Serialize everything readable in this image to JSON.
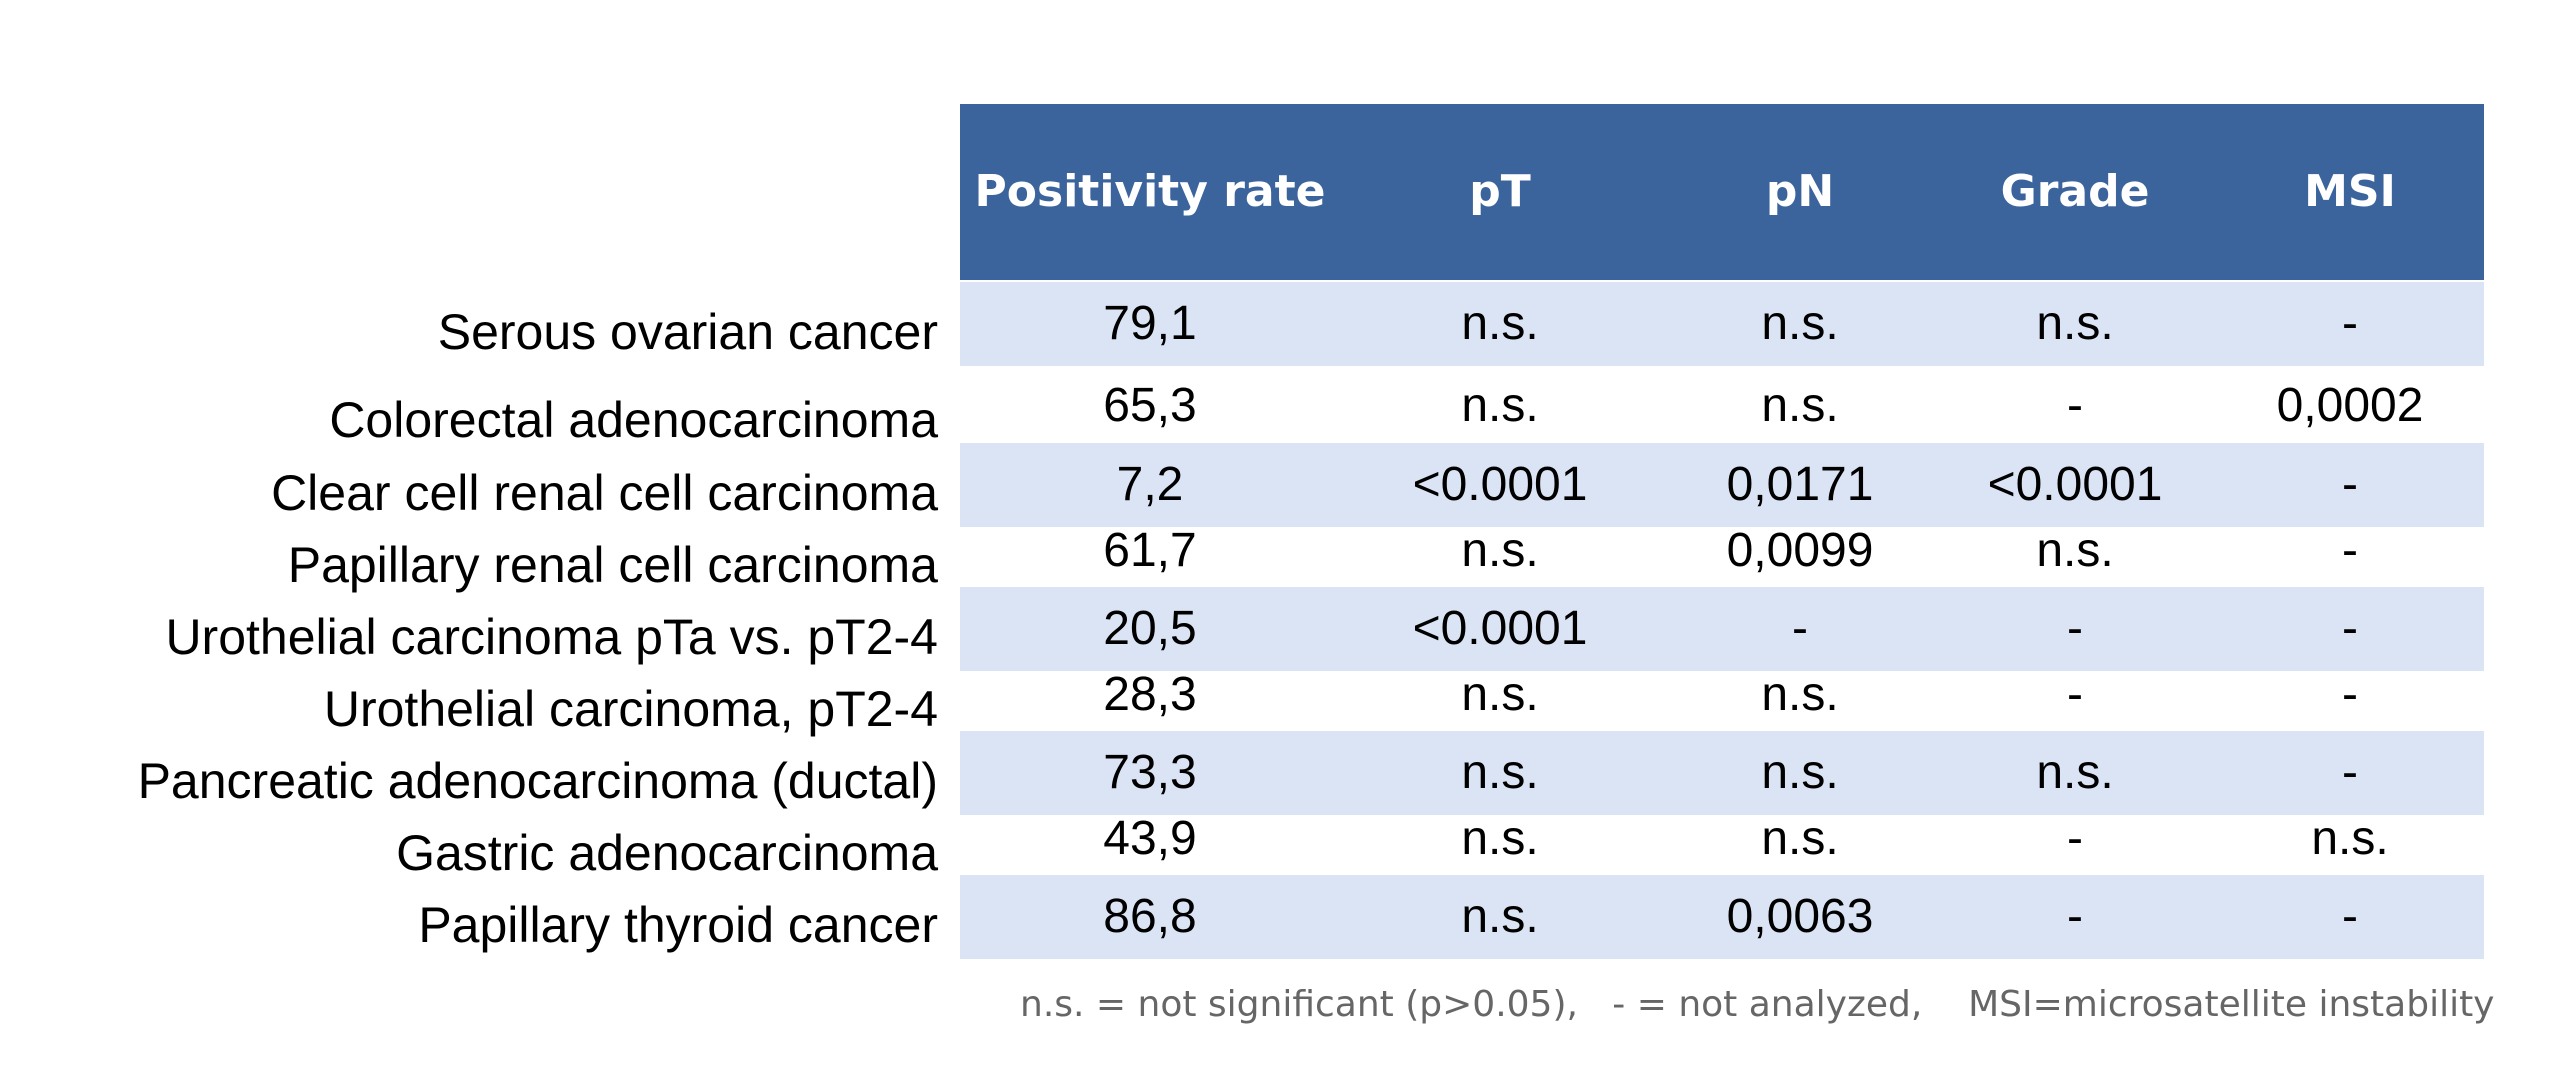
{
  "chart_data": {
    "type": "table",
    "columns": [
      "Positivity rate",
      "pT",
      "pN",
      "Grade",
      "MSI"
    ],
    "rows": [
      {
        "label": "Serous ovarian cancer",
        "values": [
          "79,1",
          "n.s.",
          "n.s.",
          "n.s.",
          "-"
        ]
      },
      {
        "label": "Colorectal adenocarcinoma",
        "values": [
          "65,3",
          "n.s.",
          "n.s.",
          "-",
          "0,0002"
        ]
      },
      {
        "label": "Clear cell renal cell carcinoma",
        "values": [
          "7,2",
          "<0.0001",
          "0,0171",
          "<0.0001",
          "-"
        ]
      },
      {
        "label": "Papillary renal cell carcinoma",
        "values": [
          "61,7",
          "n.s.",
          "0,0099",
          "n.s.",
          "-"
        ]
      },
      {
        "label": "Urothelial carcinoma pTa vs. pT2-4",
        "values": [
          "20,5",
          "<0.0001",
          "-",
          "-",
          "-"
        ]
      },
      {
        "label": "Urothelial carcinoma, pT2-4",
        "values": [
          "28,3",
          "n.s.",
          "n.s.",
          "-",
          "-"
        ]
      },
      {
        "label": "Pancreatic adenocarcinoma (ductal)",
        "values": [
          "73,3",
          "n.s.",
          "n.s.",
          "n.s.",
          "-"
        ]
      },
      {
        "label": "Gastric adenocarcinoma",
        "values": [
          "43,9",
          "n.s.",
          "n.s.",
          "-",
          "n.s."
        ]
      },
      {
        "label": "Papillary thyroid cancer",
        "values": [
          "86,8",
          "n.s.",
          "0,0063",
          "-",
          "-"
        ]
      }
    ],
    "footnote": "n.s. = not significant (p>0.05),   - = not analyzed,    MSI=microsatellite instability"
  },
  "colors": {
    "header_bg": "#3b649c",
    "header_text": "#ffffff",
    "row_shade": "#dbe4f5",
    "footnote_text": "#666666"
  }
}
